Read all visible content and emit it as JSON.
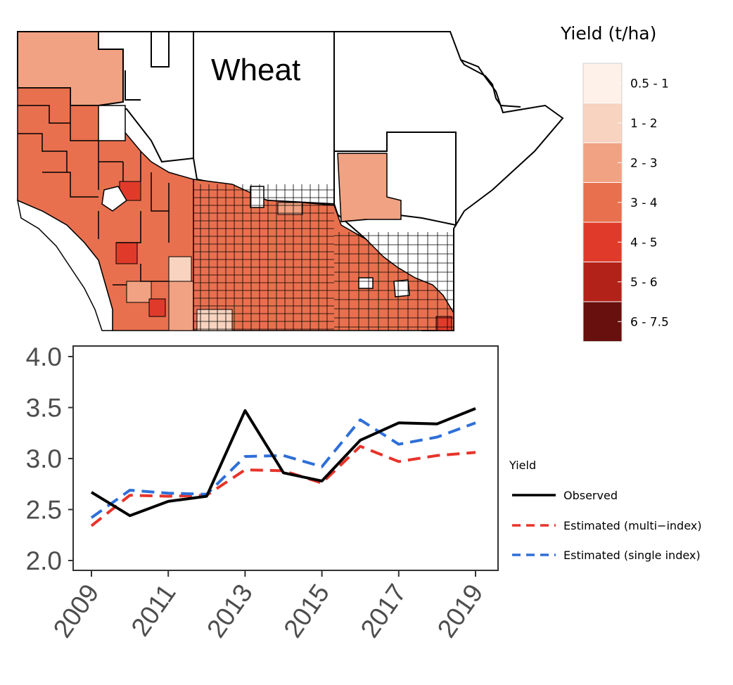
{
  "map": {
    "title": "Wheat",
    "legend_title": "Yield (t/ha)",
    "bins": [
      {
        "label": "0.5 - 1",
        "color": "#fdf1ea"
      },
      {
        "label": "1 - 2",
        "color": "#f8d3bf"
      },
      {
        "label": "2 - 3",
        "color": "#f1a282"
      },
      {
        "label": "3 - 4",
        "color": "#e8704f"
      },
      {
        "label": "4 - 5",
        "color": "#e03b2a"
      },
      {
        "label": "5 - 6",
        "color": "#b32218"
      },
      {
        "label": "6 - 7.5",
        "color": "#67100e"
      }
    ]
  },
  "chart_data": {
    "type": "line",
    "x": [
      2009,
      2010,
      2011,
      2012,
      2013,
      2014,
      2015,
      2016,
      2017,
      2018,
      2019
    ],
    "xticks": [
      "2009",
      "2011",
      "2013",
      "2015",
      "2017",
      "2019"
    ],
    "yticks": [
      "2.0",
      "2.5",
      "3.0",
      "3.5",
      "4.0"
    ],
    "ylim": [
      2.0,
      4.0
    ],
    "legend_title": "Yield",
    "series": [
      {
        "name": "Observed",
        "color": "#000000",
        "dash": "solid",
        "values": [
          2.67,
          2.44,
          2.58,
          2.63,
          3.47,
          2.86,
          2.78,
          3.18,
          3.35,
          3.34,
          3.49
        ]
      },
      {
        "name": "Estimated (multi−index)",
        "color": "#e8332a",
        "dash": "dashed",
        "values": [
          2.34,
          2.64,
          2.63,
          2.64,
          2.89,
          2.88,
          2.76,
          3.12,
          2.97,
          3.03,
          3.06
        ]
      },
      {
        "name": "Estimated (single index)",
        "color": "#2e6fd8",
        "dash": "dashed",
        "values": [
          2.42,
          2.69,
          2.66,
          2.65,
          3.02,
          3.03,
          2.92,
          3.38,
          3.14,
          3.21,
          3.35
        ]
      }
    ]
  }
}
